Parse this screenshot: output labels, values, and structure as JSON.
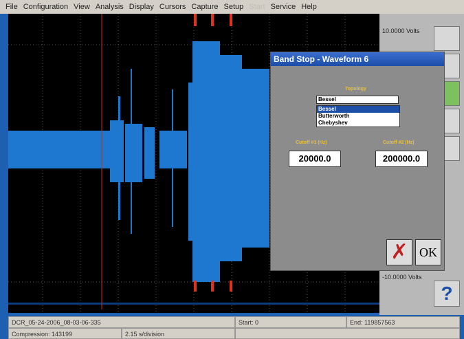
{
  "menu": [
    "File",
    "Configuration",
    "View",
    "Analysis",
    "Display",
    "Cursors",
    "Capture",
    "Setup",
    "Start",
    "Service",
    "Help"
  ],
  "scale": {
    "top": "10.0000 Volts",
    "bottom": "-10.0000 Volts"
  },
  "dialog": {
    "title": "Band Stop - Waveform 6",
    "topology_label": "Topology",
    "selected": "Bessel",
    "options": [
      "Bessel",
      "Butterworth",
      "Chebyshev"
    ],
    "cutoff1_label": "Cutoff #1 (Hz)",
    "cutoff2_label": "Cutoff #2 (Hz)",
    "cutoff1": "20000.0",
    "cutoff2": "200000.0",
    "ok": "OK"
  },
  "status": {
    "file": "DCR_05-24-2006_08-03-06-335",
    "start": "Start: 0",
    "end": "End: 119857563",
    "compression": "Compression: 143199",
    "division": "2.15 s/division"
  }
}
